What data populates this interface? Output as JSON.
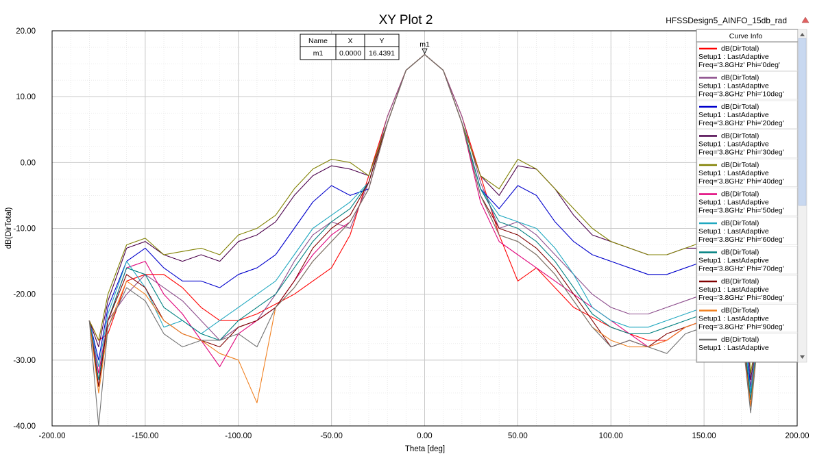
{
  "window": {
    "design_name": "HFSSDesign5_AINFO_15db_rad"
  },
  "marker_table": {
    "headers": [
      "Name",
      "X",
      "Y"
    ],
    "rows": [
      [
        "m1",
        "0.0000",
        "16.4391"
      ]
    ]
  },
  "legend": {
    "title": "Curve Info",
    "entries": [
      {
        "name": "dB(DirTotal)",
        "line2": "Setup1 : LastAdaptive",
        "line3": "Freq='3.8GHz' Phi='0deg'",
        "color": "#ff0000"
      },
      {
        "name": "dB(DirTotal)",
        "line2": "Setup1 : LastAdaptive",
        "line3": "Freq='3.8GHz' Phi='10deg'",
        "color": "#8b4b8b"
      },
      {
        "name": "dB(DirTotal)",
        "line2": "Setup1 : LastAdaptive",
        "line3": "Freq='3.8GHz' Phi='20deg'",
        "color": "#0000cc"
      },
      {
        "name": "dB(DirTotal)",
        "line2": "Setup1 : LastAdaptive",
        "line3": "Freq='3.8GHz' Phi='30deg'",
        "color": "#4b004b"
      },
      {
        "name": "dB(DirTotal)",
        "line2": "Setup1 : LastAdaptive",
        "line3": "Freq='3.8GHz' Phi='40deg'",
        "color": "#808000"
      },
      {
        "name": "dB(DirTotal)",
        "line2": "Setup1 : LastAdaptive",
        "line3": "Freq='3.8GHz' Phi='50deg'",
        "color": "#e0007a"
      },
      {
        "name": "dB(DirTotal)",
        "line2": "Setup1 : LastAdaptive",
        "line3": "Freq='3.8GHz' Phi='60deg'",
        "color": "#20a8c0"
      },
      {
        "name": "dB(DirTotal)",
        "line2": "Setup1 : LastAdaptive",
        "line3": "Freq='3.8GHz' Phi='70deg'",
        "color": "#008080"
      },
      {
        "name": "dB(DirTotal)",
        "line2": "Setup1 : LastAdaptive",
        "line3": "Freq='3.8GHz' Phi='80deg'",
        "color": "#800000"
      },
      {
        "name": "dB(DirTotal)",
        "line2": "Setup1 : LastAdaptive",
        "line3": "Freq='3.8GHz' Phi='90deg'",
        "color": "#f08020"
      },
      {
        "name": "dB(DirTotal)",
        "line2": "Setup1 : LastAdaptive",
        "line3": "",
        "color": "#707070"
      }
    ]
  },
  "chart_data": {
    "type": "line",
    "title": "XY Plot 2",
    "xlabel": "Theta [deg]",
    "ylabel": "dB(DirTotal)",
    "xlim": [
      -200,
      200
    ],
    "ylim": [
      -40,
      20
    ],
    "xticks": [
      "-200.00",
      "-150.00",
      "-100.00",
      "-50.00",
      "0.00",
      "50.00",
      "100.00",
      "150.00",
      "200.00"
    ],
    "yticks": [
      "20.00",
      "10.00",
      "0.00",
      "-10.00",
      "-20.00",
      "-30.00",
      "-40.00"
    ],
    "grid": true,
    "legend_position": "right",
    "marker": {
      "name": "m1",
      "x": 0,
      "y": 16.4391
    },
    "series": [
      {
        "name": "dB(DirTotal) Freq='3.8GHz' Phi='0deg'",
        "color": "#ff0000",
        "x": [
          -180,
          -175,
          -170,
          -160,
          -150,
          -140,
          -130,
          -120,
          -110,
          -100,
          -90,
          -80,
          -70,
          -60,
          -50,
          -40,
          -30,
          -20,
          -10,
          0,
          10,
          20,
          30,
          40,
          50,
          60,
          70,
          80,
          90,
          100,
          110,
          120,
          130,
          140,
          150,
          160,
          170,
          175,
          180
        ],
        "y": [
          -24,
          -27,
          -26,
          -18,
          -17,
          -17,
          -19,
          -22,
          -24,
          -24,
          -23,
          -21.5,
          -20,
          -18,
          -16,
          -11,
          -2,
          7,
          14,
          16.4,
          14,
          7,
          -2,
          -11,
          -18,
          -16,
          -19,
          -22,
          -23.5,
          -25,
          -26,
          -27,
          -27,
          -25,
          -24,
          -23,
          -24,
          -37,
          -24
        ]
      },
      {
        "name": "dB(DirTotal) Freq='3.8GHz' Phi='10deg'",
        "color": "#8b4b8b",
        "x": [
          -180,
          -175,
          -170,
          -160,
          -150,
          -140,
          -130,
          -120,
          -110,
          -100,
          -90,
          -80,
          -70,
          -60,
          -50,
          -40,
          -30,
          -20,
          -10,
          0,
          10,
          20,
          30,
          40,
          50,
          60,
          70,
          80,
          90,
          100,
          110,
          120,
          130,
          140,
          150,
          160,
          170,
          175,
          180
        ],
        "y": [
          -24,
          -34,
          -24,
          -20,
          -17,
          -19,
          -21,
          -24,
          -27,
          -25,
          -24,
          -20,
          -15,
          -11,
          -9,
          -10,
          -3,
          7,
          14,
          16.4,
          14,
          7,
          -3,
          -10,
          -9,
          -11,
          -14,
          -17,
          -20,
          -22,
          -23,
          -23,
          -22,
          -21,
          -20,
          -19,
          -20,
          -34,
          -24
        ]
      },
      {
        "name": "dB(DirTotal) Freq='3.8GHz' Phi='20deg'",
        "color": "#0000cc",
        "x": [
          -180,
          -175,
          -170,
          -160,
          -150,
          -140,
          -130,
          -120,
          -110,
          -100,
          -90,
          -80,
          -70,
          -60,
          -50,
          -40,
          -30,
          -20,
          -10,
          0,
          10,
          20,
          30,
          40,
          50,
          60,
          70,
          80,
          90,
          100,
          110,
          120,
          130,
          140,
          150,
          160,
          170,
          175,
          180
        ],
        "y": [
          -24,
          -30,
          -22,
          -15,
          -13,
          -16,
          -18,
          -18,
          -19,
          -17,
          -16,
          -14,
          -10,
          -6,
          -3.5,
          -5,
          -4,
          6,
          14,
          16.4,
          14,
          6,
          -4,
          -7,
          -3.5,
          -5,
          -9,
          -12,
          -14,
          -15,
          -16,
          -17,
          -17,
          -16,
          -15,
          -14,
          -15,
          -35,
          -24
        ]
      },
      {
        "name": "dB(DirTotal) Freq='3.8GHz' Phi='30deg'",
        "color": "#4b004b",
        "x": [
          -180,
          -175,
          -170,
          -160,
          -150,
          -140,
          -130,
          -120,
          -110,
          -100,
          -90,
          -80,
          -70,
          -60,
          -50,
          -40,
          -30,
          -20,
          -10,
          0,
          10,
          20,
          30,
          40,
          50,
          60,
          70,
          80,
          90,
          100,
          110,
          120,
          130,
          140,
          150,
          160,
          170,
          175,
          180
        ],
        "y": [
          -24,
          -28,
          -21,
          -13,
          -12,
          -14,
          -15,
          -14,
          -15,
          -12,
          -11,
          -9,
          -5,
          -2,
          -0.5,
          -1,
          -2,
          6,
          14,
          16.4,
          14,
          6,
          -2,
          -5,
          -0.5,
          -1,
          -4,
          -8,
          -11,
          -12,
          -13,
          -14,
          -14,
          -13,
          -13,
          -12,
          -13,
          -33,
          -24
        ]
      },
      {
        "name": "dB(DirTotal) Freq='3.8GHz' Phi='40deg'",
        "color": "#808000",
        "x": [
          -180,
          -175,
          -170,
          -160,
          -150,
          -140,
          -130,
          -120,
          -110,
          -100,
          -90,
          -80,
          -70,
          -60,
          -50,
          -40,
          -30,
          -20,
          -10,
          0,
          10,
          20,
          30,
          40,
          50,
          60,
          70,
          80,
          90,
          100,
          110,
          120,
          130,
          140,
          150,
          160,
          170,
          175,
          180
        ],
        "y": [
          -24,
          -27,
          -20,
          -12.5,
          -11.5,
          -14,
          -13.5,
          -13,
          -14,
          -11,
          -10,
          -8,
          -4,
          -1,
          0.5,
          0,
          -2,
          6,
          14,
          16.4,
          14,
          6,
          -2,
          -4,
          0.5,
          -1,
          -4,
          -7,
          -10,
          -12,
          -13,
          -14,
          -14,
          -13,
          -12,
          -12,
          -13,
          -32,
          -24
        ]
      },
      {
        "name": "dB(DirTotal) Freq='3.8GHz' Phi='50deg'",
        "color": "#e0007a",
        "x": [
          -180,
          -175,
          -170,
          -160,
          -150,
          -140,
          -130,
          -120,
          -110,
          -100,
          -90,
          -80,
          -70,
          -60,
          -50,
          -40,
          -30,
          -20,
          -10,
          0,
          10,
          20,
          30,
          40,
          50,
          60,
          70,
          80,
          90,
          100,
          110,
          120,
          130,
          140,
          150,
          160,
          170,
          175,
          180
        ],
        "y": [
          -24,
          -32,
          -24,
          -16,
          -15,
          -20,
          -23,
          -27,
          -31,
          -26,
          -24,
          -22,
          -18,
          -14,
          -11,
          -9,
          -4,
          6,
          14,
          16.4,
          14,
          6,
          -6,
          -12,
          -14,
          -16,
          -18,
          -20,
          -22,
          -24,
          -26,
          -28,
          -27,
          -25,
          -24,
          -23,
          -24,
          -36,
          -24
        ]
      },
      {
        "name": "dB(DirTotal) Freq='3.8GHz' Phi='60deg'",
        "color": "#20a8c0",
        "x": [
          -180,
          -175,
          -170,
          -160,
          -150,
          -140,
          -130,
          -120,
          -110,
          -100,
          -90,
          -80,
          -70,
          -60,
          -50,
          -40,
          -30,
          -20,
          -10,
          0,
          10,
          20,
          30,
          40,
          50,
          60,
          70,
          80,
          90,
          100,
          110,
          120,
          130,
          140,
          150,
          160,
          170,
          175,
          180
        ],
        "y": [
          -24,
          -31,
          -23,
          -15,
          -19,
          -25,
          -24,
          -26,
          -24,
          -22,
          -20,
          -18,
          -14,
          -10,
          -8,
          -6,
          -3,
          6,
          14,
          16.4,
          14,
          6,
          -4,
          -8,
          -9,
          -10,
          -13,
          -17,
          -22,
          -24,
          -25,
          -25,
          -24,
          -23,
          -22,
          -21,
          -22,
          -35,
          -24
        ]
      },
      {
        "name": "dB(DirTotal) Freq='3.8GHz' Phi='70deg'",
        "color": "#008080",
        "x": [
          -180,
          -175,
          -170,
          -160,
          -150,
          -140,
          -130,
          -120,
          -110,
          -100,
          -90,
          -80,
          -70,
          -60,
          -50,
          -40,
          -30,
          -20,
          -10,
          0,
          10,
          20,
          30,
          40,
          50,
          60,
          70,
          80,
          90,
          100,
          110,
          120,
          130,
          140,
          150,
          160,
          170,
          175,
          180
        ],
        "y": [
          -24,
          -33,
          -24,
          -16,
          -17,
          -22,
          -24,
          -26,
          -27,
          -24,
          -22,
          -20,
          -16,
          -12,
          -9,
          -7,
          -3,
          6,
          14,
          16.4,
          14,
          6,
          -4,
          -9,
          -10,
          -12,
          -15,
          -19,
          -23,
          -25,
          -26,
          -26,
          -25,
          -24,
          -23,
          -22,
          -23,
          -36,
          -24
        ]
      },
      {
        "name": "dB(DirTotal) Freq='3.8GHz' Phi='80deg'",
        "color": "#800000",
        "x": [
          -180,
          -175,
          -170,
          -160,
          -150,
          -140,
          -130,
          -120,
          -110,
          -100,
          -90,
          -80,
          -70,
          -60,
          -50,
          -40,
          -30,
          -20,
          -10,
          0,
          10,
          20,
          30,
          40,
          50,
          60,
          70,
          80,
          90,
          100,
          110,
          120,
          130,
          140,
          150,
          160,
          170,
          175,
          180
        ],
        "y": [
          -24,
          -34,
          -24,
          -17,
          -19,
          -24,
          -26,
          -27,
          -28,
          -25,
          -24,
          -22,
          -18,
          -13,
          -10,
          -8,
          -3,
          6,
          14,
          16.4,
          14,
          6,
          -5,
          -10,
          -11,
          -13,
          -16,
          -20,
          -24,
          -28,
          -27,
          -28,
          -26,
          -25,
          -24,
          -23,
          -24,
          -37,
          -24
        ]
      },
      {
        "name": "dB(DirTotal) Freq='3.8GHz' Phi='90deg'",
        "color": "#f08020",
        "x": [
          -180,
          -175,
          -170,
          -160,
          -150,
          -140,
          -130,
          -120,
          -110,
          -100,
          -90,
          -80,
          -70,
          -60,
          -50,
          -40,
          -30,
          -20,
          -10,
          0,
          10,
          20,
          30,
          40,
          50,
          60,
          70,
          80,
          90,
          100,
          110,
          120,
          130,
          140,
          150,
          160,
          170,
          175,
          180
        ],
        "y": [
          -24,
          -35,
          -25,
          -18,
          -20,
          -24,
          -26,
          -27,
          -29,
          -30,
          -36.5,
          -22,
          -19,
          -15,
          -12,
          -9,
          -4,
          6,
          14,
          16.4,
          14,
          6,
          -5,
          -11,
          -12,
          -14,
          -17,
          -21,
          -25,
          -27,
          -28,
          -28,
          -27,
          -25,
          -24,
          -24,
          -25,
          -37,
          -24
        ]
      },
      {
        "name": "dB(DirTotal)",
        "color": "#707070",
        "x": [
          -180,
          -175,
          -170,
          -160,
          -150,
          -140,
          -130,
          -120,
          -110,
          -100,
          -90,
          -80,
          -70,
          -60,
          -50,
          -40,
          -30,
          -20,
          -10,
          0,
          10,
          20,
          30,
          40,
          50,
          60,
          70,
          80,
          90,
          100,
          110,
          120,
          130,
          140,
          150,
          160,
          170,
          175,
          180
        ],
        "y": [
          -24,
          -40,
          -25,
          -19,
          -21,
          -26,
          -28,
          -27,
          -27,
          -26,
          -28,
          -22,
          -19,
          -15,
          -12,
          -9,
          -4,
          6,
          14,
          16.4,
          14,
          6,
          -5,
          -11,
          -12,
          -14,
          -17,
          -21,
          -25,
          -28,
          -27,
          -28,
          -29,
          -26,
          -25,
          -24,
          -25,
          -38,
          -24
        ]
      }
    ]
  }
}
